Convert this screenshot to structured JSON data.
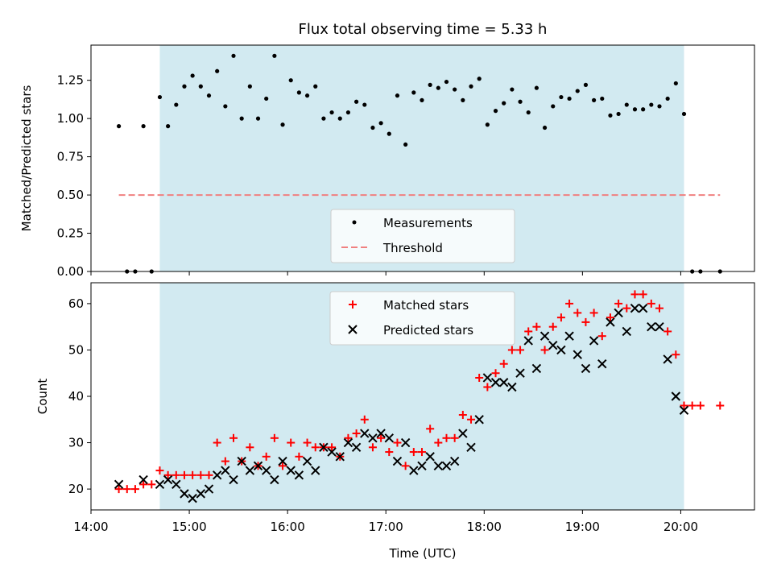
{
  "chart_data": [
    {
      "type": "scatter",
      "title": "Flux total observing time = 5.33 h",
      "xlabel": "",
      "ylabel": "Matched/Predicted stars",
      "ylim": [
        0,
        1.48
      ],
      "xlim": [
        "14:00",
        "20:45"
      ],
      "y_ticks": [
        "0.00",
        "0.25",
        "0.50",
        "0.75",
        "1.00",
        "1.25"
      ],
      "y_tick_values": [
        0,
        0.25,
        0.5,
        0.75,
        1.0,
        1.25
      ],
      "shaded_region": {
        "start": "14:42",
        "end": "20:02",
        "color": "#add8e6"
      },
      "threshold": {
        "name": "Threshold",
        "value": 0.5,
        "start": "14:17",
        "end": "20:24",
        "color": "#f08080",
        "style": "dashed"
      },
      "legend": {
        "placement": "lower center",
        "items": [
          "Measurements",
          "Threshold"
        ]
      },
      "grid": false,
      "series": [
        {
          "name": "Measurements",
          "color": "#000000",
          "marker": "dot",
          "points": [
            [
              "14:17",
              0.95
            ],
            [
              "14:22",
              0.0
            ],
            [
              "14:27",
              0.0
            ],
            [
              "14:32",
              0.95
            ],
            [
              "14:37",
              0.0
            ],
            [
              "14:42",
              1.14
            ],
            [
              "14:47",
              0.95
            ],
            [
              "14:52",
              1.09
            ],
            [
              "14:57",
              1.21
            ],
            [
              "15:02",
              1.28
            ],
            [
              "15:07",
              1.21
            ],
            [
              "15:12",
              1.15
            ],
            [
              "15:17",
              1.31
            ],
            [
              "15:22",
              1.08
            ],
            [
              "15:27",
              1.41
            ],
            [
              "15:32",
              1.0
            ],
            [
              "15:37",
              1.21
            ],
            [
              "15:42",
              1.0
            ],
            [
              "15:47",
              1.13
            ],
            [
              "15:52",
              1.41
            ],
            [
              "15:57",
              0.96
            ],
            [
              "16:02",
              1.25
            ],
            [
              "16:07",
              1.17
            ],
            [
              "16:12",
              1.15
            ],
            [
              "16:17",
              1.21
            ],
            [
              "16:22",
              1.0
            ],
            [
              "16:27",
              1.04
            ],
            [
              "16:32",
              1.0
            ],
            [
              "16:37",
              1.04
            ],
            [
              "16:42",
              1.11
            ],
            [
              "16:47",
              1.09
            ],
            [
              "16:52",
              0.94
            ],
            [
              "16:57",
              0.97
            ],
            [
              "17:02",
              0.9
            ],
            [
              "17:07",
              1.15
            ],
            [
              "17:12",
              0.83
            ],
            [
              "17:17",
              1.17
            ],
            [
              "17:22",
              1.12
            ],
            [
              "17:27",
              1.22
            ],
            [
              "17:32",
              1.2
            ],
            [
              "17:37",
              1.24
            ],
            [
              "17:42",
              1.19
            ],
            [
              "17:47",
              1.12
            ],
            [
              "17:52",
              1.21
            ],
            [
              "17:57",
              1.26
            ],
            [
              "18:02",
              0.96
            ],
            [
              "18:07",
              1.05
            ],
            [
              "18:12",
              1.1
            ],
            [
              "18:17",
              1.19
            ],
            [
              "18:22",
              1.11
            ],
            [
              "18:27",
              1.04
            ],
            [
              "18:32",
              1.2
            ],
            [
              "18:37",
              0.94
            ],
            [
              "18:42",
              1.08
            ],
            [
              "18:47",
              1.14
            ],
            [
              "18:52",
              1.13
            ],
            [
              "18:57",
              1.18
            ],
            [
              "19:02",
              1.22
            ],
            [
              "19:07",
              1.12
            ],
            [
              "19:12",
              1.13
            ],
            [
              "19:17",
              1.02
            ],
            [
              "19:22",
              1.03
            ],
            [
              "19:27",
              1.09
            ],
            [
              "19:32",
              1.06
            ],
            [
              "19:37",
              1.06
            ],
            [
              "19:42",
              1.09
            ],
            [
              "19:47",
              1.08
            ],
            [
              "19:52",
              1.13
            ],
            [
              "19:57",
              1.23
            ],
            [
              "20:02",
              1.03
            ],
            [
              "20:07",
              0.0
            ],
            [
              "20:12",
              0.0
            ],
            [
              "20:24",
              0.0
            ]
          ]
        }
      ]
    },
    {
      "type": "scatter",
      "title": "",
      "xlabel": "Time (UTC)",
      "ylabel": "Count",
      "ylim": [
        15.5,
        64.5
      ],
      "xlim": [
        "14:00",
        "20:45"
      ],
      "x_ticks": [
        "14:00",
        "15:00",
        "16:00",
        "17:00",
        "18:00",
        "19:00",
        "20:00"
      ],
      "y_ticks": [
        "20",
        "30",
        "40",
        "50",
        "60"
      ],
      "y_tick_values": [
        20,
        30,
        40,
        50,
        60
      ],
      "shaded_region": {
        "start": "14:42",
        "end": "20:02",
        "color": "#add8e6"
      },
      "legend": {
        "placement": "top center",
        "items": [
          "Matched stars",
          "Predicted stars"
        ]
      },
      "grid": false,
      "series": [
        {
          "name": "Matched stars",
          "color": "#ff0000",
          "marker": "plus",
          "points": [
            [
              "14:17",
              20
            ],
            [
              "14:22",
              20
            ],
            [
              "14:27",
              20
            ],
            [
              "14:32",
              21
            ],
            [
              "14:37",
              21
            ],
            [
              "14:42",
              24
            ],
            [
              "14:47",
              23
            ],
            [
              "14:52",
              23
            ],
            [
              "14:57",
              23
            ],
            [
              "15:02",
              23
            ],
            [
              "15:07",
              23
            ],
            [
              "15:12",
              23
            ],
            [
              "15:17",
              30
            ],
            [
              "15:22",
              26
            ],
            [
              "15:27",
              31
            ],
            [
              "15:32",
              26
            ],
            [
              "15:37",
              29
            ],
            [
              "15:42",
              25
            ],
            [
              "15:47",
              27
            ],
            [
              "15:52",
              31
            ],
            [
              "15:57",
              25
            ],
            [
              "16:02",
              30
            ],
            [
              "16:07",
              27
            ],
            [
              "16:12",
              30
            ],
            [
              "16:17",
              29
            ],
            [
              "16:22",
              29
            ],
            [
              "16:27",
              29
            ],
            [
              "16:32",
              27
            ],
            [
              "16:37",
              31
            ],
            [
              "16:42",
              32
            ],
            [
              "16:47",
              35
            ],
            [
              "16:52",
              29
            ],
            [
              "16:57",
              31
            ],
            [
              "17:02",
              28
            ],
            [
              "17:07",
              30
            ],
            [
              "17:12",
              25
            ],
            [
              "17:17",
              28
            ],
            [
              "17:22",
              28
            ],
            [
              "17:27",
              33
            ],
            [
              "17:32",
              30
            ],
            [
              "17:37",
              31
            ],
            [
              "17:42",
              31
            ],
            [
              "17:47",
              36
            ],
            [
              "17:52",
              35
            ],
            [
              "17:57",
              44
            ],
            [
              "18:02",
              42
            ],
            [
              "18:07",
              45
            ],
            [
              "18:12",
              47
            ],
            [
              "18:17",
              50
            ],
            [
              "18:22",
              50
            ],
            [
              "18:27",
              54
            ],
            [
              "18:32",
              55
            ],
            [
              "18:37",
              50
            ],
            [
              "18:42",
              55
            ],
            [
              "18:47",
              57
            ],
            [
              "18:52",
              60
            ],
            [
              "18:57",
              58
            ],
            [
              "19:02",
              56
            ],
            [
              "19:07",
              58
            ],
            [
              "19:12",
              53
            ],
            [
              "19:17",
              57
            ],
            [
              "19:22",
              60
            ],
            [
              "19:27",
              59
            ],
            [
              "19:32",
              62
            ],
            [
              "19:37",
              62
            ],
            [
              "19:42",
              60
            ],
            [
              "19:47",
              59
            ],
            [
              "19:52",
              54
            ],
            [
              "19:57",
              49
            ],
            [
              "20:02",
              38
            ],
            [
              "20:07",
              38
            ],
            [
              "20:12",
              38
            ],
            [
              "20:24",
              38
            ]
          ]
        },
        {
          "name": "Predicted stars",
          "color": "#000000",
          "marker": "x",
          "points": [
            [
              "14:17",
              21
            ],
            [
              "14:32",
              22
            ],
            [
              "14:42",
              21
            ],
            [
              "14:47",
              22
            ],
            [
              "14:52",
              21
            ],
            [
              "14:57",
              19
            ],
            [
              "15:02",
              18
            ],
            [
              "15:07",
              19
            ],
            [
              "15:12",
              20
            ],
            [
              "15:17",
              23
            ],
            [
              "15:22",
              24
            ],
            [
              "15:27",
              22
            ],
            [
              "15:32",
              26
            ],
            [
              "15:37",
              24
            ],
            [
              "15:42",
              25
            ],
            [
              "15:47",
              24
            ],
            [
              "15:52",
              22
            ],
            [
              "15:57",
              26
            ],
            [
              "16:02",
              24
            ],
            [
              "16:07",
              23
            ],
            [
              "16:12",
              26
            ],
            [
              "16:17",
              24
            ],
            [
              "16:22",
              29
            ],
            [
              "16:27",
              28
            ],
            [
              "16:32",
              27
            ],
            [
              "16:37",
              30
            ],
            [
              "16:42",
              29
            ],
            [
              "16:47",
              32
            ],
            [
              "16:52",
              31
            ],
            [
              "16:57",
              32
            ],
            [
              "17:02",
              31
            ],
            [
              "17:07",
              26
            ],
            [
              "17:12",
              30
            ],
            [
              "17:17",
              24
            ],
            [
              "17:22",
              25
            ],
            [
              "17:27",
              27
            ],
            [
              "17:32",
              25
            ],
            [
              "17:37",
              25
            ],
            [
              "17:42",
              26
            ],
            [
              "17:47",
              32
            ],
            [
              "17:52",
              29
            ],
            [
              "17:57",
              35
            ],
            [
              "18:02",
              44
            ],
            [
              "18:07",
              43
            ],
            [
              "18:12",
              43
            ],
            [
              "18:17",
              42
            ],
            [
              "18:22",
              45
            ],
            [
              "18:27",
              52
            ],
            [
              "18:32",
              46
            ],
            [
              "18:37",
              53
            ],
            [
              "18:42",
              51
            ],
            [
              "18:47",
              50
            ],
            [
              "18:52",
              53
            ],
            [
              "18:57",
              49
            ],
            [
              "19:02",
              46
            ],
            [
              "19:07",
              52
            ],
            [
              "19:12",
              47
            ],
            [
              "19:17",
              56
            ],
            [
              "19:22",
              58
            ],
            [
              "19:27",
              54
            ],
            [
              "19:32",
              59
            ],
            [
              "19:37",
              59
            ],
            [
              "19:42",
              55
            ],
            [
              "19:47",
              55
            ],
            [
              "19:52",
              48
            ],
            [
              "19:57",
              40
            ],
            [
              "20:02",
              37
            ]
          ]
        }
      ]
    }
  ]
}
